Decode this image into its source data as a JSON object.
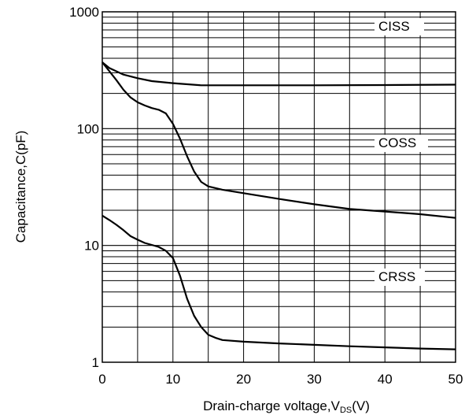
{
  "chart_data": {
    "type": "line",
    "xlabel": "Drain-charge voltage,",
    "xlabel_symbol": "V",
    "xlabel_subscript": "DS",
    "xlabel_unit": "(V)",
    "ylabel": "Capacitance,C(pF)",
    "xlim": [
      0,
      50
    ],
    "ylim": [
      1,
      1000
    ],
    "y_scale": "log",
    "grid": true,
    "x_ticks": [
      "0",
      "10",
      "20",
      "30",
      "40",
      "50"
    ],
    "y_ticks": [
      "1",
      "10",
      "100",
      "1000"
    ],
    "series": [
      {
        "name": "CISS",
        "x": [
          0,
          1,
          3,
          5,
          7,
          10,
          14,
          20,
          30,
          40,
          50
        ],
        "y": [
          370,
          330,
          290,
          270,
          255,
          245,
          235,
          235,
          235,
          236,
          238
        ]
      },
      {
        "name": "COSS",
        "x": [
          0,
          1,
          2,
          3,
          4,
          5,
          6,
          7,
          8,
          9,
          10,
          11,
          12,
          13,
          14,
          15,
          17,
          20,
          25,
          30,
          35,
          40,
          45,
          50
        ],
        "y": [
          370,
          310,
          260,
          215,
          185,
          168,
          158,
          150,
          145,
          135,
          110,
          82,
          58,
          43,
          35,
          32,
          30,
          28,
          25,
          22.5,
          20.5,
          19.5,
          18.5,
          17.2
        ]
      },
      {
        "name": "CRSS",
        "x": [
          0,
          1,
          2,
          3,
          4,
          5,
          6,
          7,
          8,
          9,
          10,
          11,
          12,
          13,
          14,
          15,
          16,
          17,
          20,
          25,
          30,
          35,
          40,
          45,
          50
        ],
        "y": [
          18,
          16.5,
          15,
          13.5,
          12,
          11.2,
          10.5,
          10.1,
          9.7,
          9.0,
          7.8,
          5.5,
          3.5,
          2.5,
          2.0,
          1.72,
          1.62,
          1.55,
          1.5,
          1.45,
          1.41,
          1.37,
          1.34,
          1.31,
          1.29
        ]
      }
    ]
  }
}
